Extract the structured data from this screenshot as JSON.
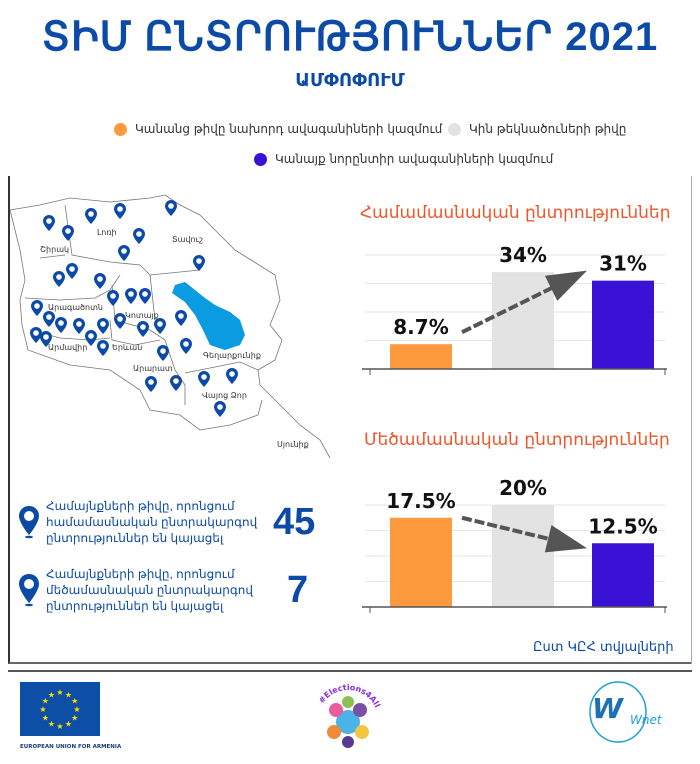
{
  "header": {
    "title": "ՏԻՄ ԸՆՏՐՈՒԹՅՈՒՆՆԵՐ 2021",
    "subtitle": "ԱՄՓՈՓՈՒՄ"
  },
  "legend": [
    {
      "label": "Կանանց թիվը նախորդ ավագանիների կազմում",
      "color": "#fd9a3e"
    },
    {
      "label": "Կին թեկնածուների թիվը",
      "color": "#e3e3e3"
    },
    {
      "label": "Կանայք նորընտիր ավագանիների կազմում",
      "color": "#3a12d6"
    }
  ],
  "map": {
    "regions": [
      "Շիրակ",
      "Լոռի",
      "Տավուշ",
      "Արագածոտն",
      "Կոտայք",
      "Արմավիր",
      "Երևան",
      "Գեղարքունիք",
      "Արարատ",
      "Վայոց Ձոր",
      "Սյունիք"
    ],
    "pin_icon": "map-pin-icon"
  },
  "stats": [
    {
      "text": "Համայնքների թիվը, որոնցում համամասնական ընտրակարգով ընտրություններ են կայացել",
      "value": "45"
    },
    {
      "text": "Համայնքների թիվը, որոնցում մեծամասնական ընտրակարգով ընտրություններ են կայացել",
      "value": "7"
    }
  ],
  "chart_data": [
    {
      "type": "bar",
      "title": "Համամասնական ընտրություններ",
      "categories": [
        "Կանանց թիվը նախորդ ավագանիների կազմում",
        "Կին թեկնածուների թիվը",
        "Կանայք նորընտիր ավագանիների կազմում"
      ],
      "values": [
        8.7,
        34,
        31
      ],
      "labels": [
        "8.7%",
        "34%",
        "31%"
      ],
      "ylim": [
        0,
        40
      ],
      "trend": "up"
    },
    {
      "type": "bar",
      "title": "Մեծամասնական ընտրություններ",
      "categories": [
        "Կանանց թիվը նախորդ ավագանիների կազմում",
        "Կին թեկնածուների թիվը",
        "Կանայք նորընտիր ավագանիների կազմում"
      ],
      "values": [
        17.5,
        20,
        12.5
      ],
      "labels": [
        "17.5%",
        "20%",
        "12.5%"
      ],
      "ylim": [
        0,
        20
      ],
      "trend": "down"
    }
  ],
  "source": "Ըստ ԿԸՀ  տվյալների",
  "footer": {
    "eu": "EUROPEAN UNION FOR ARMENIA",
    "elections": "#Elections4All",
    "wnet": "Wnet"
  }
}
